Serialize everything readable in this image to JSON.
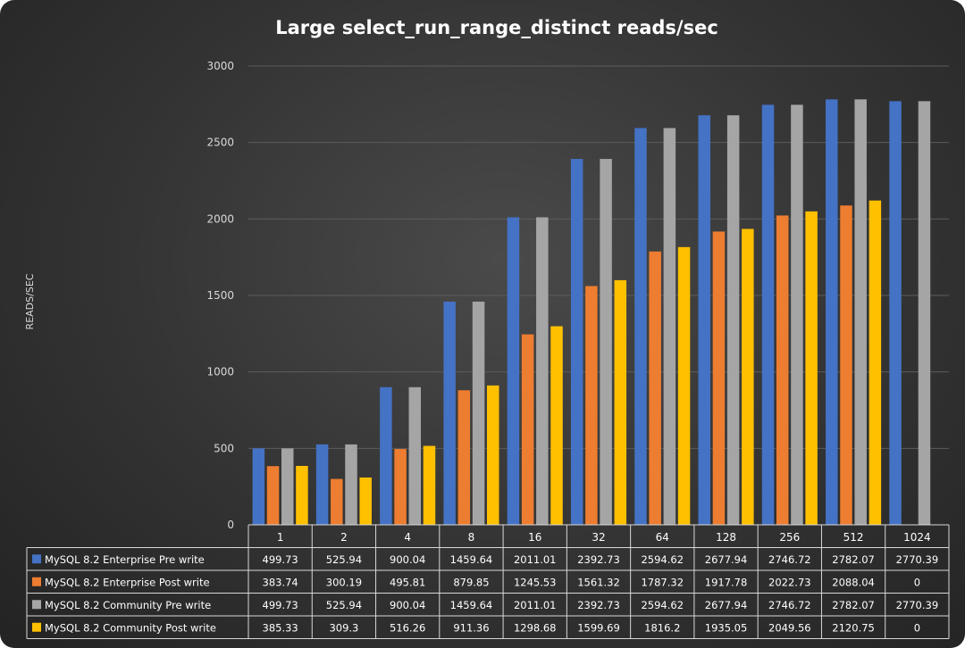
{
  "chart_data": {
    "type": "bar",
    "title": "Large select_run_range_distinct   reads/sec",
    "xlabel": "",
    "ylabel": "READS/SEC",
    "ylim": [
      0,
      3000
    ],
    "yticks": [
      0,
      500,
      1000,
      1500,
      2000,
      2500,
      3000
    ],
    "grid": true,
    "legend": "bottom data table",
    "categories": [
      "1",
      "2",
      "4",
      "8",
      "16",
      "32",
      "64",
      "128",
      "256",
      "512",
      "1024"
    ],
    "series": [
      {
        "name": "MySQL 8.2 Enterprise Pre write",
        "color": "#4472c4",
        "values": [
          499.73,
          525.94,
          900.04,
          1459.64,
          2011.01,
          2392.73,
          2594.62,
          2677.94,
          2746.72,
          2782.07,
          2770.39
        ],
        "labels": [
          "499.73",
          "525.94",
          "900.04",
          "1459.64",
          "2011.01",
          "2392.73",
          "2594.62",
          "2677.94",
          "2746.72",
          "2782.07",
          "2770.39"
        ]
      },
      {
        "name": "MySQL 8.2 Enterprise Post write",
        "color": "#ed7d31",
        "values": [
          383.74,
          300.19,
          495.81,
          879.85,
          1245.53,
          1561.32,
          1787.32,
          1917.78,
          2022.73,
          2088.04,
          0
        ],
        "labels": [
          "383.74",
          "300.19",
          "495.81",
          "879.85",
          "1245.53",
          "1561.32",
          "1787.32",
          "1917.78",
          "2022.73",
          "2088.04",
          "0"
        ]
      },
      {
        "name": "MySQL 8.2 Community Pre write",
        "color": "#a5a5a5",
        "values": [
          499.73,
          525.94,
          900.04,
          1459.64,
          2011.01,
          2392.73,
          2594.62,
          2677.94,
          2746.72,
          2782.07,
          2770.39
        ],
        "labels": [
          "499.73",
          "525.94",
          "900.04",
          "1459.64",
          "2011.01",
          "2392.73",
          "2594.62",
          "2677.94",
          "2746.72",
          "2782.07",
          "2770.39"
        ]
      },
      {
        "name": "MySQL 8.2 Community Post write",
        "color": "#ffc000",
        "values": [
          385.33,
          309.3,
          516.26,
          911.36,
          1298.68,
          1599.69,
          1816.2,
          1935.05,
          2049.56,
          2120.75,
          0
        ],
        "labels": [
          "385.33",
          "309.3",
          "516.26",
          "911.36",
          "1298.68",
          "1599.69",
          "1816.2",
          "1935.05",
          "2049.56",
          "2120.75",
          "0"
        ]
      }
    ]
  }
}
